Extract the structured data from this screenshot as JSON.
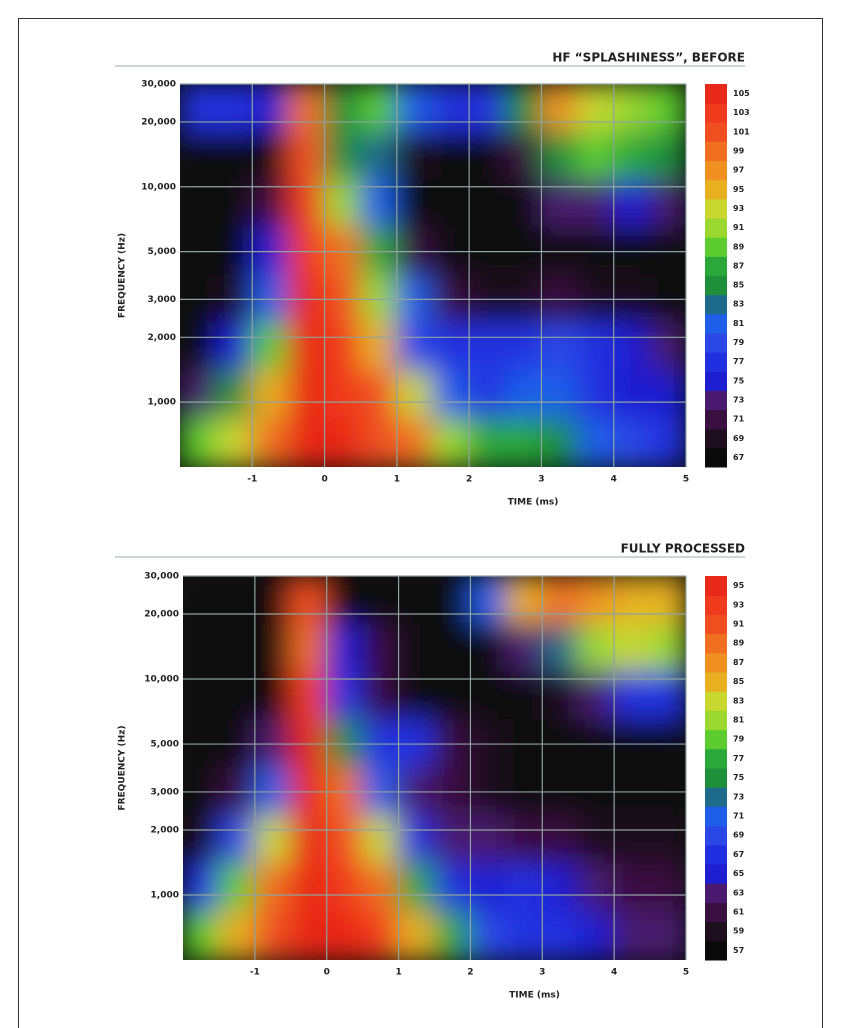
{
  "chart_data": [
    {
      "type": "heatmap",
      "title": "HF “SPLASHINESS”, BEFORE",
      "xlabel": "TIME (ms)",
      "ylabel": "FREQUENCY (Hz)",
      "xlim": [
        -2,
        5
      ],
      "xticks": [
        -1,
        0,
        1,
        2,
        3,
        4,
        5
      ],
      "ylim": [
        500,
        30000
      ],
      "log_y": true,
      "yticks": [
        {
          "value": 1000,
          "label": "1,000"
        },
        {
          "value": 2000,
          "label": "2,000"
        },
        {
          "value": 3000,
          "label": "3,000"
        },
        {
          "value": 5000,
          "label": "5,000"
        },
        {
          "value": 10000,
          "label": "10,000"
        },
        {
          "value": 20000,
          "label": "20,000"
        },
        {
          "value": 30000,
          "label": "30,000"
        }
      ],
      "grid": true,
      "z": [
        [
          76,
          76,
          75,
          98,
          85,
          88,
          80,
          76,
          76,
          85,
          97,
          92,
          90,
          88
        ],
        [
          67,
          67,
          67,
          100,
          85,
          82,
          68,
          67,
          67,
          70,
          85,
          88,
          86,
          84
        ],
        [
          67,
          67,
          70,
          102,
          90,
          80,
          67,
          67,
          67,
          67,
          72,
          73,
          74,
          72
        ],
        [
          67,
          67,
          74,
          103,
          98,
          86,
          70,
          67,
          67,
          67,
          67,
          67,
          67,
          67
        ],
        [
          67,
          68,
          80,
          104,
          101,
          90,
          80,
          70,
          68,
          69,
          70,
          69,
          68,
          67
        ],
        [
          67,
          75,
          88,
          104,
          102,
          95,
          78,
          76,
          76,
          77,
          78,
          76,
          74,
          73
        ],
        [
          72,
          85,
          95,
          104,
          103,
          100,
          93,
          80,
          77,
          80,
          80,
          77,
          75,
          74
        ],
        [
          88,
          92,
          99,
          104,
          104,
          101,
          98,
          90,
          86,
          86,
          85,
          80,
          78,
          77
        ]
      ],
      "colorbar": {
        "ticks": [
          67,
          69,
          71,
          73,
          75,
          77,
          79,
          81,
          83,
          85,
          87,
          89,
          91,
          93,
          95,
          97,
          99,
          101,
          103,
          105
        ],
        "colors": [
          "#0a0a0a",
          "#1e0f1e",
          "#3a1040",
          "#4a1a70",
          "#1e1ed2",
          "#2030e0",
          "#2a48e6",
          "#1e5ee8",
          "#1e6a8a",
          "#1f8f3a",
          "#2aa83a",
          "#5ccc2e",
          "#9ad830",
          "#c8d830",
          "#e8b020",
          "#f09020",
          "#f07020",
          "#f05020",
          "#f03a1e",
          "#e82818"
        ]
      }
    },
    {
      "type": "heatmap",
      "title": "FULLY PROCESSED",
      "xlabel": "TIME (ms)",
      "ylabel": "FREQUENCY (Hz)",
      "xlim": [
        -2,
        5
      ],
      "xticks": [
        -1,
        0,
        1,
        2,
        3,
        4,
        5
      ],
      "ylim": [
        500,
        30000
      ],
      "log_y": true,
      "yticks": [
        {
          "value": 1000,
          "label": "1,000"
        },
        {
          "value": 2000,
          "label": "2,000"
        },
        {
          "value": 3000,
          "label": "3,000"
        },
        {
          "value": 5000,
          "label": "5,000"
        },
        {
          "value": 10000,
          "label": "10,000"
        },
        {
          "value": 20000,
          "label": "20,000"
        },
        {
          "value": 30000,
          "label": "30,000"
        }
      ],
      "grid": true,
      "z": [
        [
          57,
          57,
          57,
          90,
          57,
          57,
          57,
          57,
          70,
          85,
          88,
          87,
          85,
          84
        ],
        [
          57,
          57,
          57,
          88,
          65,
          60,
          57,
          57,
          57,
          62,
          72,
          80,
          82,
          80
        ],
        [
          57,
          57,
          57,
          92,
          66,
          60,
          57,
          57,
          57,
          57,
          58,
          63,
          66,
          66
        ],
        [
          57,
          57,
          62,
          94,
          75,
          66,
          66,
          60,
          58,
          57,
          57,
          57,
          57,
          57
        ],
        [
          57,
          60,
          70,
          95,
          88,
          70,
          63,
          60,
          58,
          57,
          57,
          57,
          57,
          57
        ],
        [
          58,
          68,
          82,
          95,
          90,
          82,
          66,
          63,
          62,
          60,
          60,
          58,
          58,
          58
        ],
        [
          66,
          78,
          88,
          95,
          93,
          88,
          76,
          66,
          65,
          66,
          64,
          62,
          60,
          60
        ],
        [
          78,
          84,
          90,
          95,
          94,
          92,
          85,
          76,
          68,
          66,
          66,
          64,
          62,
          62
        ]
      ],
      "colorbar": {
        "ticks": [
          57,
          59,
          61,
          63,
          65,
          67,
          69,
          71,
          73,
          75,
          77,
          79,
          81,
          83,
          85,
          87,
          89,
          91,
          93,
          95
        ],
        "colors": [
          "#0a0a0a",
          "#1e0f1e",
          "#3a1040",
          "#4a1a70",
          "#1e1ed2",
          "#2030e0",
          "#2a48e6",
          "#1e5ee8",
          "#1e6a8a",
          "#1f8f3a",
          "#2aa83a",
          "#5ccc2e",
          "#9ad830",
          "#c8d830",
          "#e8b020",
          "#f09020",
          "#f07020",
          "#f05020",
          "#f03a1e",
          "#e82818"
        ]
      }
    }
  ]
}
